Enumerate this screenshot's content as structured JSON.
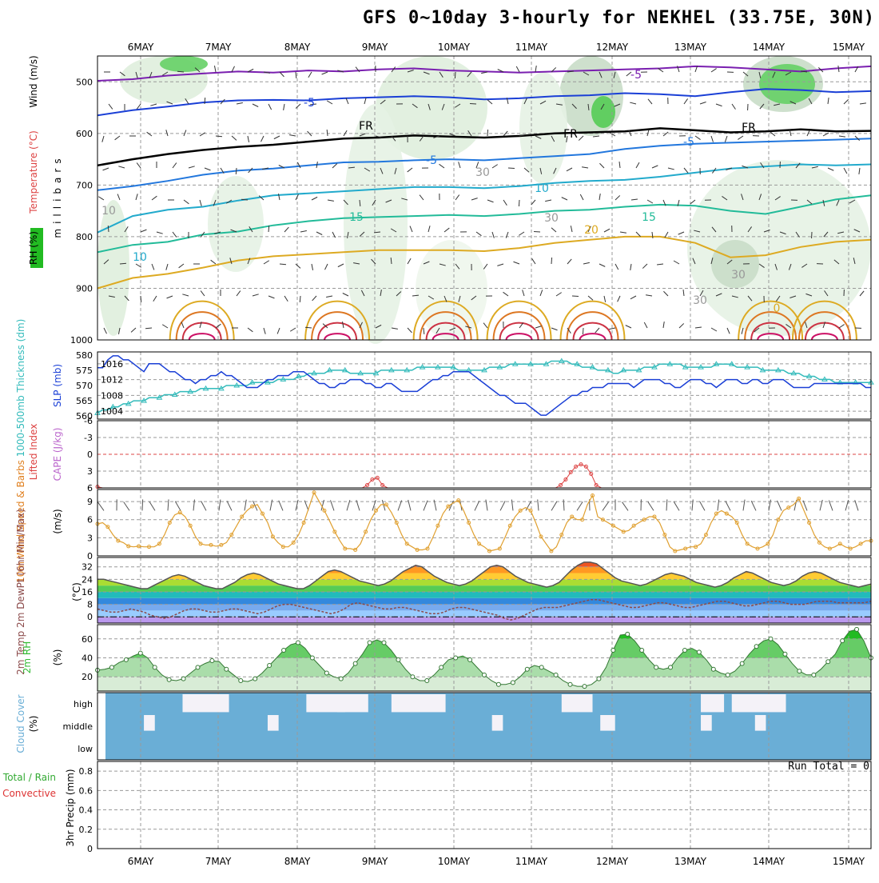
{
  "title": "GFS 0~10day 3-hourly for NEKHEL (33.75E, 30N)",
  "run_total_label": "Run Total = 0",
  "colors": {
    "grid": "#999999",
    "slp": "#1a3fd6",
    "thickness": "#33bbbb",
    "lifted_index": "#dd4444",
    "wind_speed": "#e0a030",
    "rh": "#33bb33",
    "cloud": "#6aaed6",
    "temp_line": "#555555",
    "dewpt_line": "#8b4a4a"
  },
  "chart_data": [
    {
      "type": "contour",
      "name": "upper-air",
      "dates": [
        "6MAY",
        "7MAY",
        "8MAY",
        "9MAY",
        "10MAY",
        "11MAY",
        "12MAY",
        "13MAY",
        "14MAY",
        "15MAY"
      ],
      "ylabels": {
        "wind": "Wind (m/s)",
        "temperature": "Temperature (°C)",
        "rh": "RH (%)",
        "axis": "millibars"
      },
      "y_ticks": [
        500,
        600,
        700,
        800,
        900,
        1000
      ],
      "ylim": [
        450,
        1000
      ],
      "isotherm_labels": [
        "-5",
        "-5",
        "FR",
        "FR",
        "FR",
        "-5",
        "-5",
        "10",
        "10",
        "15",
        "15",
        "20",
        "30",
        "30",
        "30",
        "30",
        "10",
        "0"
      ],
      "isotherms": [
        {
          "label": "-5",
          "color": "#7a1fb0",
          "p": [
            498,
            495,
            488,
            484,
            480,
            482,
            478,
            480,
            476,
            474,
            478,
            480,
            482,
            480,
            478,
            476,
            474,
            470,
            472,
            476,
            480,
            474,
            470
          ]
        },
        {
          "label": "-5",
          "color": "#1a3fd6",
          "p": [
            565,
            555,
            548,
            540,
            536,
            535,
            536,
            532,
            530,
            528,
            530,
            534,
            532,
            528,
            526,
            522,
            524,
            528,
            520,
            514,
            516,
            520,
            518
          ]
        },
        {
          "label": "FR",
          "color": "#000000",
          "p": [
            662,
            650,
            640,
            632,
            626,
            622,
            616,
            610,
            608,
            604,
            606,
            608,
            605,
            600,
            598,
            596,
            590,
            594,
            598,
            596,
            592,
            596,
            595
          ]
        },
        {
          "label": "-5",
          "color": "#2277dd",
          "p": [
            710,
            702,
            692,
            680,
            672,
            668,
            662,
            656,
            655,
            652,
            650,
            652,
            648,
            644,
            640,
            630,
            624,
            620,
            618,
            616,
            614,
            612,
            610
          ]
        },
        {
          "label": "10",
          "color": "#22aacc",
          "p": [
            792,
            760,
            748,
            742,
            730,
            720,
            716,
            712,
            708,
            704,
            704,
            706,
            702,
            696,
            692,
            690,
            684,
            676,
            668,
            664,
            660,
            662,
            660
          ]
        },
        {
          "label": "15",
          "color": "#22bb99",
          "p": [
            830,
            816,
            810,
            796,
            790,
            778,
            770,
            764,
            762,
            760,
            758,
            760,
            756,
            750,
            748,
            742,
            738,
            740,
            750,
            756,
            742,
            728,
            720
          ]
        },
        {
          "label": "20",
          "color": "#ddaa22",
          "p": [
            900,
            880,
            872,
            860,
            846,
            838,
            834,
            830,
            826,
            826,
            826,
            828,
            822,
            812,
            806,
            800,
            800,
            812,
            840,
            836,
            820,
            810,
            806
          ]
        }
      ]
    },
    {
      "type": "line",
      "name": "slp-thickness",
      "ylabel_left": "1000-500mb Thickness (dm)",
      "ylabel_right": "SLP (mb)",
      "thickness_ticks": [
        560,
        565,
        570,
        575,
        580
      ],
      "slp_ticks": [
        1004,
        1008,
        1012,
        1016
      ],
      "thickness_lim": [
        559,
        581
      ],
      "slp_lim": [
        1002,
        1019
      ],
      "slp": [
        1015,
        1015,
        1017,
        1018,
        1018,
        1017,
        1017,
        1016,
        1015,
        1014,
        1016,
        1016,
        1016,
        1015,
        1014,
        1014,
        1013,
        1012,
        1012,
        1011,
        1012,
        1012,
        1013,
        1013,
        1014,
        1013,
        1013,
        1012,
        1011,
        1010,
        1010,
        1010,
        1011,
        1012,
        1012,
        1013,
        1013,
        1013,
        1014,
        1014,
        1014,
        1013,
        1012,
        1011,
        1011,
        1010,
        1010,
        1011,
        1011,
        1012,
        1012,
        1012,
        1011,
        1011,
        1010,
        1010,
        1011,
        1011,
        1010,
        1009,
        1009,
        1009,
        1009,
        1010,
        1011,
        1012,
        1012,
        1013,
        1013,
        1014,
        1014,
        1014,
        1014,
        1013,
        1012,
        1011,
        1010,
        1009,
        1008,
        1008,
        1007,
        1006,
        1006,
        1006,
        1005,
        1004,
        1003,
        1003,
        1004,
        1005,
        1006,
        1007,
        1008,
        1008,
        1009,
        1009,
        1010,
        1010,
        1010,
        1011,
        1011,
        1011,
        1011,
        1011,
        1010,
        1011,
        1012,
        1012,
        1012,
        1012,
        1011,
        1011,
        1010,
        1010,
        1011,
        1012,
        1012,
        1012,
        1011,
        1011,
        1010,
        1011,
        1012,
        1012,
        1012,
        1011,
        1011,
        1012,
        1012,
        1011,
        1011,
        1012,
        1012,
        1012,
        1011,
        1010,
        1010,
        1010,
        1010,
        1011,
        1011,
        1011,
        1011,
        1011,
        1011,
        1011,
        1011,
        1011,
        1011,
        1010,
        1010
      ],
      "thickness": [
        561,
        562,
        562,
        563,
        563,
        564,
        564,
        565,
        565,
        565,
        566,
        566,
        566,
        567,
        567,
        567,
        568,
        568,
        568,
        568,
        569,
        569,
        569,
        569,
        569,
        570,
        570,
        570,
        570,
        570,
        571,
        571,
        571,
        571,
        571,
        572,
        572,
        572,
        572,
        573,
        573,
        574,
        574,
        574,
        574,
        575,
        575,
        575,
        575,
        574,
        574,
        574,
        574,
        574,
        574,
        575,
        575,
        575,
        575,
        575,
        575,
        575,
        576,
        576,
        576,
        576,
        576,
        576,
        576,
        576,
        575,
        575,
        575,
        575,
        575,
        575,
        576,
        576,
        576,
        576,
        577,
        577,
        577,
        577,
        577,
        577,
        577,
        577,
        578,
        578,
        578,
        578,
        577,
        577,
        576,
        576,
        576,
        575,
        575,
        575,
        574,
        574,
        575,
        575,
        575,
        575,
        576,
        576,
        576,
        577,
        577,
        577,
        577,
        577,
        576,
        576,
        576,
        576,
        576,
        576,
        577,
        577,
        577,
        577,
        576,
        576,
        576,
        576,
        576,
        575,
        575,
        575,
        575,
        575,
        574,
        574,
        574,
        573,
        573,
        573,
        572,
        572,
        572,
        571,
        571,
        571,
        571,
        571,
        571,
        571,
        571
      ]
    },
    {
      "type": "line",
      "name": "lifted-index",
      "ylabel_left": "Lifted Index",
      "ylabel_right": "CAPE (J/kg)",
      "y_ticks": [
        -6,
        -3,
        0,
        3,
        6
      ],
      "ylim": [
        6,
        -6
      ],
      "li": [
        5.8,
        6,
        6,
        6,
        6,
        6,
        6,
        6,
        6,
        6,
        6,
        6,
        6,
        6,
        6,
        6,
        6,
        6,
        6,
        6,
        6,
        6,
        6,
        6,
        6,
        6,
        6,
        6,
        6,
        6,
        6,
        6,
        6,
        6,
        6,
        6,
        6,
        6,
        6,
        6,
        6,
        6,
        6,
        6,
        6,
        6,
        6,
        6,
        6,
        6,
        6,
        6,
        6,
        5.5,
        4.5,
        4.2,
        5.5,
        6,
        6,
        6,
        6,
        6,
        6,
        6,
        6,
        6,
        6,
        6,
        6,
        6,
        6,
        6,
        6,
        6,
        6,
        6,
        6,
        6,
        6,
        6,
        6,
        6,
        6,
        6,
        6,
        6,
        6,
        6,
        6,
        6,
        6,
        5.5,
        4.5,
        3.2,
        2.2,
        1.8,
        2.2,
        3.5,
        5.5,
        6,
        6,
        6,
        6,
        6,
        6,
        6,
        6,
        6,
        6,
        6,
        6,
        6,
        6,
        6,
        6,
        6,
        6,
        6,
        6,
        6,
        6,
        6,
        6,
        6,
        6,
        6,
        6,
        6,
        6,
        6,
        6,
        6,
        6,
        6,
        6,
        6,
        6,
        6,
        6,
        6,
        6,
        6,
        6,
        6,
        6,
        6,
        6,
        6,
        6,
        6,
        6,
        6,
        6
      ]
    },
    {
      "type": "line",
      "name": "wind-10m",
      "ylabel_left": "10m Wind Speed & Barbs",
      "ylabel_right": "(m/s)",
      "y_ticks": [
        0,
        3,
        6,
        9
      ],
      "ylim": [
        0,
        11
      ],
      "speed": [
        5.3,
        5.5,
        4.8,
        3.5,
        2.5,
        2.2,
        1.6,
        1.5,
        1.6,
        1.5,
        1.5,
        1.5,
        2.0,
        3.5,
        5.5,
        6.8,
        7.2,
        6.5,
        5.0,
        3.2,
        2.0,
        1.8,
        1.8,
        1.6,
        1.8,
        2.2,
        3.5,
        5.0,
        6.5,
        7.5,
        8.2,
        8.5,
        7.0,
        5.5,
        3.2,
        2.2,
        1.5,
        1.5,
        2.2,
        3.5,
        5.5,
        8.0,
        10.5,
        9.0,
        7.5,
        5.8,
        4.0,
        2.5,
        1.2,
        1.2,
        1.0,
        2.0,
        4.0,
        6.0,
        7.5,
        8.5,
        8.5,
        7.2,
        5.5,
        3.5,
        2.0,
        1.5,
        1.0,
        1.0,
        1.2,
        3.0,
        5.0,
        7.0,
        8.2,
        8.8,
        9.2,
        7.5,
        5.5,
        3.5,
        2.0,
        1.5,
        0.8,
        1.0,
        1.2,
        3.0,
        5.0,
        6.5,
        7.5,
        8.0,
        7.5,
        5.5,
        3.2,
        2.0,
        0.8,
        1.5,
        3.5,
        5.5,
        6.5,
        6.0,
        6.0,
        8.5,
        10.0,
        6.5,
        6.0,
        5.5,
        5.0,
        4.5,
        4.0,
        4.2,
        5.0,
        5.5,
        6.0,
        6.5,
        6.5,
        5.5,
        3.5,
        1.5,
        0.8,
        1.0,
        1.2,
        1.5,
        1.5,
        2.0,
        3.5,
        5.5,
        7.0,
        7.5,
        7.0,
        6.5,
        5.5,
        3.5,
        2.0,
        1.5,
        1.2,
        1.5,
        2.0,
        3.5,
        6.0,
        7.5,
        8.0,
        8.5,
        9.5,
        7.5,
        5.5,
        3.5,
        2.2,
        1.5,
        1.2,
        1.5,
        2.0,
        1.5,
        1.2,
        1.5,
        2.0,
        2.5,
        2.5
      ]
    },
    {
      "type": "area",
      "name": "temperature",
      "ylabel_left": "2m Temp 2m DewPt (6hr Min/Max)",
      "ylabel_right": "(°C)",
      "y_ticks": [
        0,
        8,
        16,
        24,
        32
      ],
      "ylim": [
        -4,
        38
      ],
      "temp": [
        24,
        24,
        23,
        22,
        21,
        20,
        19,
        18,
        18,
        20,
        22,
        24,
        26,
        27,
        26,
        24,
        22,
        20,
        19,
        18,
        18,
        20,
        22,
        25,
        27,
        28,
        27,
        25,
        23,
        21,
        20,
        19,
        18,
        18,
        20,
        23,
        26,
        29,
        30,
        29,
        27,
        25,
        23,
        22,
        21,
        20,
        21,
        23,
        26,
        29,
        31,
        33,
        32,
        29,
        26,
        24,
        22,
        21,
        20,
        21,
        23,
        26,
        29,
        32,
        33,
        32,
        29,
        26,
        24,
        22,
        21,
        20,
        19,
        20,
        22,
        26,
        30,
        33,
        35,
        35,
        34,
        31,
        28,
        25,
        23,
        22,
        21,
        20,
        21,
        23,
        25,
        27,
        28,
        27,
        26,
        24,
        22,
        21,
        20,
        19,
        20,
        22,
        25,
        27,
        29,
        28,
        26,
        24,
        22,
        21,
        20,
        21,
        23,
        26,
        28,
        29,
        28,
        26,
        24,
        22,
        21,
        20,
        19,
        20,
        21
      ],
      "dewpt": [
        5,
        4,
        3,
        3,
        4,
        5,
        4,
        3,
        1,
        0,
        -1,
        0,
        2,
        4,
        5,
        5,
        4,
        3,
        3,
        4,
        5,
        5,
        4,
        3,
        2,
        3,
        5,
        7,
        8,
        8,
        7,
        6,
        5,
        4,
        3,
        2,
        3,
        5,
        8,
        9,
        8,
        7,
        6,
        5,
        5,
        6,
        6,
        5,
        4,
        3,
        2,
        2,
        3,
        5,
        6,
        6,
        5,
        4,
        3,
        2,
        1,
        -1,
        -2,
        -1,
        1,
        3,
        5,
        6,
        6,
        6,
        7,
        8,
        9,
        10,
        11,
        11,
        10,
        9,
        8,
        7,
        6,
        6,
        7,
        8,
        9,
        9,
        8,
        7,
        6,
        6,
        7,
        8,
        9,
        10,
        10,
        9,
        8,
        7,
        7,
        8,
        9,
        10,
        10,
        9,
        8,
        8,
        8,
        9,
        10,
        10,
        10,
        9,
        9,
        9,
        9,
        9,
        10
      ]
    },
    {
      "type": "area",
      "name": "rh-2m",
      "ylabel_left": "2m RH",
      "ylabel_right": "(%)",
      "y_ticks": [
        20,
        40,
        60
      ],
      "ylim": [
        5,
        75
      ],
      "rh": [
        27,
        28,
        30,
        35,
        38,
        42,
        45,
        40,
        30,
        22,
        17,
        16,
        18,
        24,
        30,
        34,
        37,
        36,
        28,
        22,
        16,
        15,
        18,
        24,
        32,
        40,
        48,
        54,
        56,
        50,
        40,
        32,
        24,
        20,
        18,
        24,
        34,
        44,
        56,
        59,
        56,
        48,
        38,
        28,
        20,
        16,
        16,
        22,
        30,
        38,
        40,
        42,
        38,
        30,
        22,
        16,
        12,
        12,
        14,
        20,
        28,
        32,
        30,
        26,
        22,
        16,
        12,
        10,
        10,
        12,
        18,
        30,
        48,
        64,
        65,
        58,
        48,
        38,
        30,
        28,
        30,
        40,
        48,
        50,
        46,
        38,
        28,
        24,
        22,
        26,
        34,
        44,
        52,
        58,
        60,
        54,
        44,
        34,
        26,
        22,
        22,
        28,
        36,
        44,
        58,
        68,
        70,
        58,
        40
      ]
    },
    {
      "type": "heatmap",
      "name": "cloud-cover",
      "ylabel_left": "Cloud Cover",
      "ylabel_right": "(%)",
      "layers": [
        "high",
        "middle",
        "low"
      ],
      "high_gaps": [
        [
          0.11,
          0.06
        ],
        [
          0.27,
          0.05
        ],
        [
          0.31,
          0.04
        ],
        [
          0.38,
          0.07
        ],
        [
          0.6,
          0.04
        ],
        [
          0.78,
          0.03
        ],
        [
          0.82,
          0.07
        ]
      ],
      "middle_gaps": [
        [
          0.06,
          0.01
        ],
        [
          0.22,
          0.01
        ],
        [
          0.51,
          0.01
        ],
        [
          0.65,
          0.015
        ],
        [
          0.78,
          0.01
        ],
        [
          0.85,
          0.01
        ]
      ]
    },
    {
      "type": "bar",
      "name": "precip",
      "ylabel_left": "3hr Precip (mm)",
      "ylabel_right_a": "Total / Rain",
      "ylabel_right_b": "Convective",
      "y_ticks": [
        "0",
        "0.2",
        "0.4",
        "0.6",
        "0.8"
      ],
      "ylim": [
        0,
        0.9
      ],
      "values": []
    }
  ]
}
